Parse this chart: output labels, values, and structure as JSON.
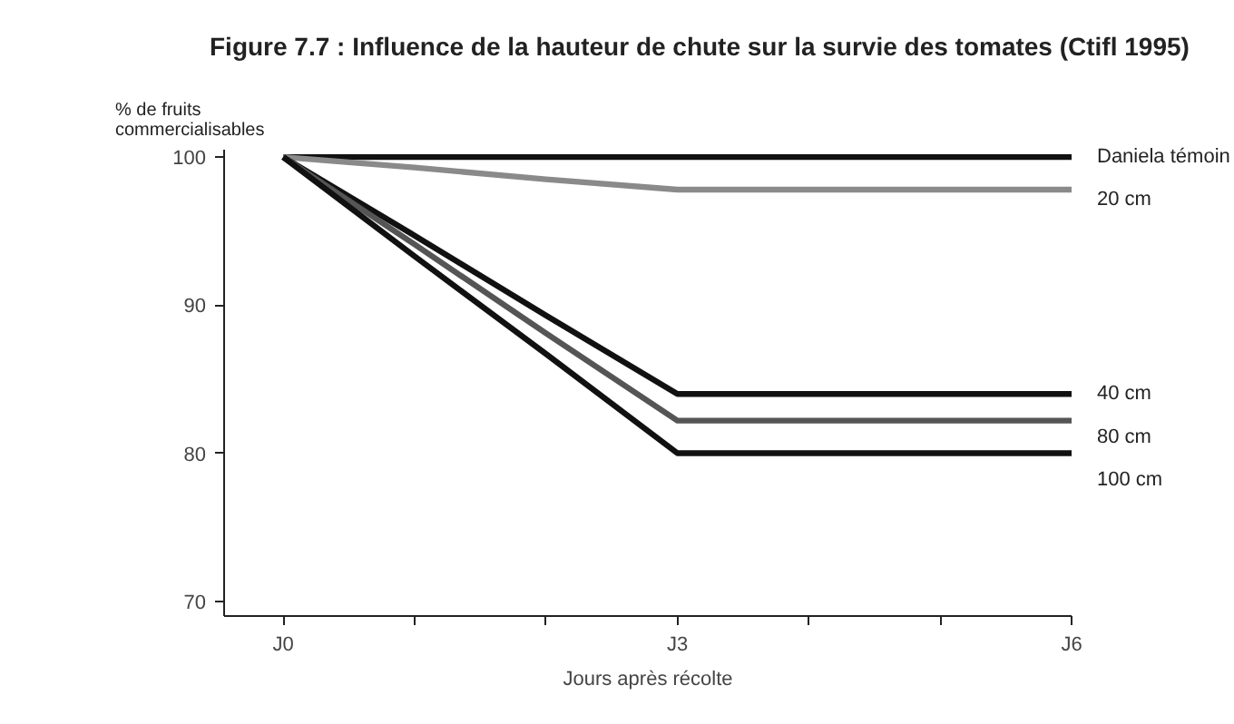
{
  "chart_data": {
    "type": "line",
    "title": "Figure 7.7 : Influence de la hauteur de chute sur la survie des tomates (Ctifl 1995)",
    "xlabel": "Jours après récolte",
    "ylabel": "% de fruits\ncommercialisables",
    "categories": [
      "J0",
      null,
      null,
      "J3",
      null,
      null,
      "J6"
    ],
    "series": [
      {
        "name": "Daniela témoin",
        "color": "#111111",
        "values": [
          100,
          100,
          100,
          100,
          100,
          100,
          100
        ]
      },
      {
        "name": "20 cm",
        "color": "#8a8a8a",
        "values": [
          100,
          99.3,
          98.5,
          97.8,
          97.8,
          97.8,
          97.8
        ]
      },
      {
        "name": "40 cm",
        "color": "#111111",
        "values": [
          100,
          94.7,
          89.3,
          84,
          84,
          84,
          84
        ]
      },
      {
        "name": "80 cm",
        "color": "#555555",
        "values": [
          100,
          94.1,
          88.1,
          82.2,
          82.2,
          82.2,
          82.2
        ]
      },
      {
        "name": "100 cm",
        "color": "#111111",
        "values": [
          100,
          93.3,
          86.7,
          80,
          80,
          80,
          80
        ]
      }
    ],
    "ylim": [
      69,
      100.5
    ],
    "yticks": [
      70,
      80,
      90,
      100
    ],
    "grid": false,
    "marker": "none",
    "line_style": "solid"
  }
}
